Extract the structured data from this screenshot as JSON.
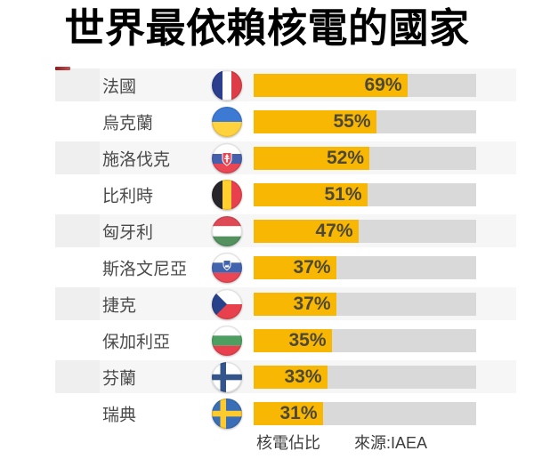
{
  "title": "世界最依賴核電的國家",
  "footer": {
    "axis_label": "核電佔比",
    "source": "來源:IAEA"
  },
  "colors": {
    "bar_fill": "#F8B702",
    "bar_track": "#D9D9D9",
    "value_text": "#4D4839",
    "label_text": "#4A4A4A",
    "title_text": "#000000",
    "row_stripe": "#F6F6F6",
    "row_left_block": "#EFEFEF",
    "red_mark": "#8E1C1C"
  },
  "chart_data": {
    "type": "bar",
    "orientation": "horizontal",
    "title": "世界最依賴核電的國家",
    "xlabel": "核電佔比",
    "source": "來源:IAEA",
    "xlim": [
      0,
      100
    ],
    "unit": "%",
    "grid": false,
    "legend": false,
    "categories": [
      "法國",
      "烏克蘭",
      "施洛伐克",
      "比利時",
      "匈牙利",
      "斯洛文尼亞",
      "捷克",
      "保加利亞",
      "芬蘭",
      "瑞典"
    ],
    "values": [
      69,
      55,
      52,
      51,
      47,
      37,
      37,
      35,
      33,
      31
    ],
    "value_labels": [
      "69%",
      "55%",
      "52%",
      "51%",
      "47%",
      "37%",
      "37%",
      "35%",
      "33%",
      "31%"
    ],
    "flags": [
      "france",
      "ukraine",
      "slovakia",
      "belgium",
      "hungary",
      "slovenia",
      "czech-republic",
      "bulgaria",
      "finland",
      "sweden"
    ]
  }
}
